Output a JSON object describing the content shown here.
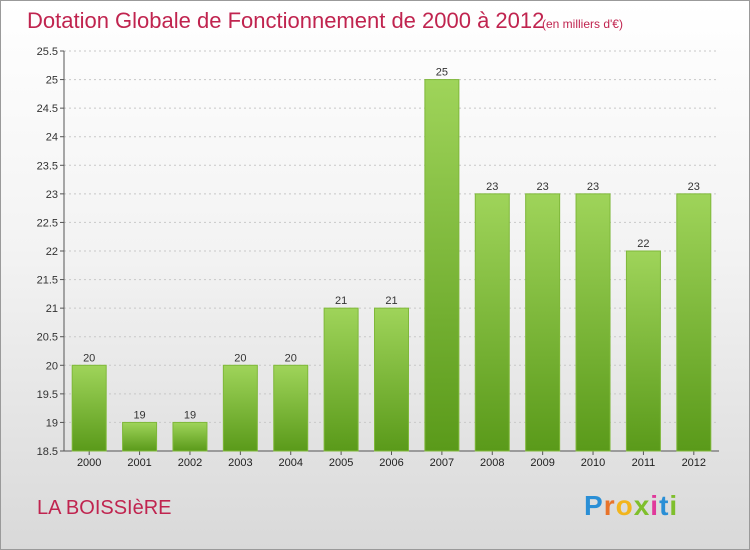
{
  "title": "Dotation Globale de Fonctionnement de 2000 à 2012",
  "unit_label": "(en milliers d'€)",
  "commune": "LA BOISSIèRE",
  "logo": {
    "letters": [
      "P",
      "r",
      "o",
      "x",
      "i",
      "t",
      "i"
    ],
    "colors": [
      "#2a8fd6",
      "#e8732a",
      "#f2b51d",
      "#7fbf2c",
      "#e0399b",
      "#2a8fd6",
      "#7fbf2c"
    ]
  },
  "colors": {
    "title": "#c0244f",
    "bar_top": "#9fd45a",
    "bar_bottom": "#5a9a1a",
    "grid": "#c8c8c8"
  },
  "chart_data": {
    "type": "bar",
    "categories": [
      "2000",
      "2001",
      "2002",
      "2003",
      "2004",
      "2005",
      "2006",
      "2007",
      "2008",
      "2009",
      "2010",
      "2011",
      "2012"
    ],
    "values": [
      20,
      19,
      19,
      20,
      20,
      21,
      21,
      25,
      23,
      23,
      23,
      22,
      23
    ],
    "data_labels": [
      "20",
      "19",
      "19",
      "20",
      "20",
      "21",
      "21",
      "25",
      "23",
      "23",
      "23",
      "22",
      "23"
    ],
    "title": "Dotation Globale de Fonctionnement de 2000 à 2012",
    "ylabel": "(en milliers d'€)",
    "ylim": [
      18.5,
      25.5
    ],
    "yticks": [
      "18.5",
      "19",
      "19.5",
      "20",
      "20.5",
      "21",
      "21.5",
      "22",
      "22.5",
      "23",
      "23.5",
      "24",
      "24.5",
      "25",
      "25.5"
    ],
    "grid": true,
    "legend": "none"
  }
}
